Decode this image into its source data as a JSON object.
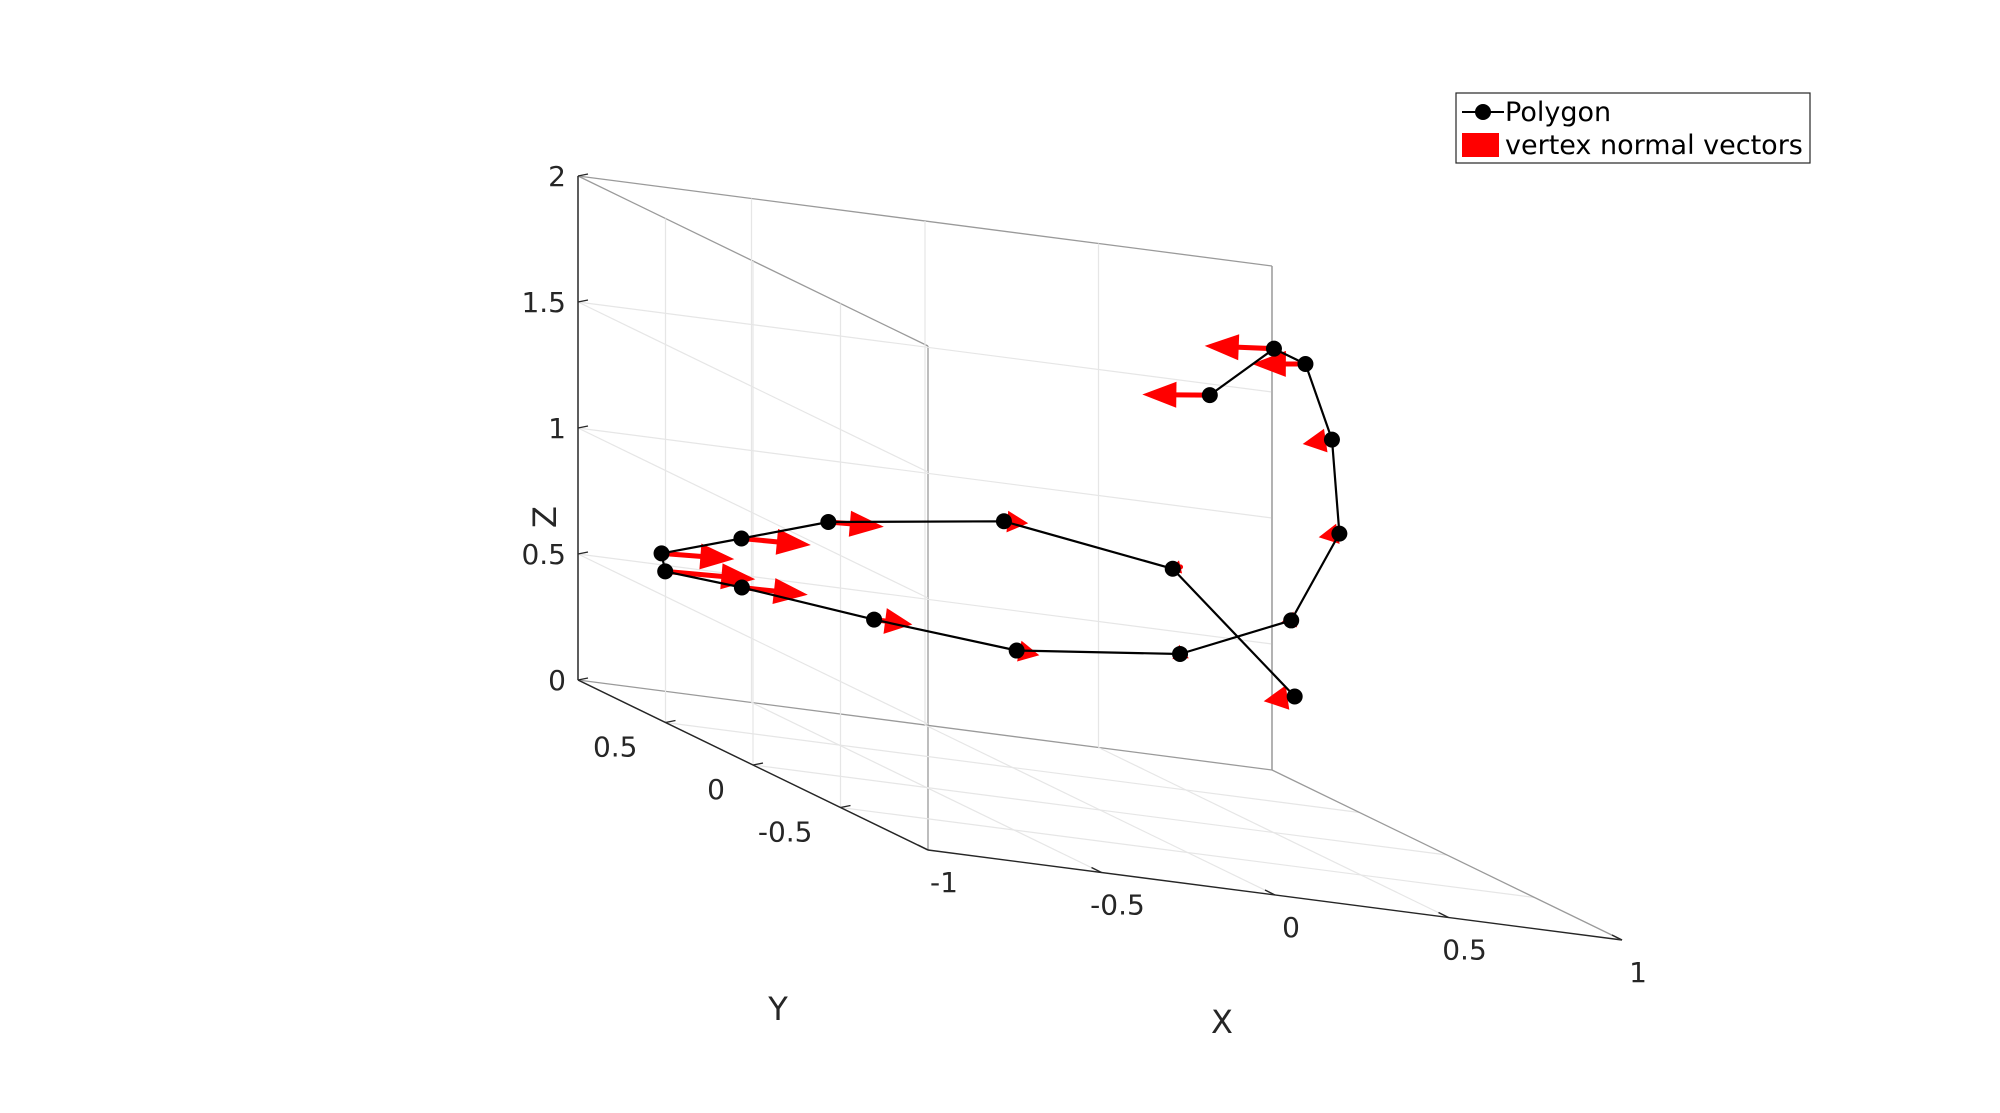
{
  "chart_data": {
    "type": "line3d",
    "xlabel": "X",
    "ylabel": "Y",
    "zlabel": "Z",
    "xlim": [
      -1,
      1
    ],
    "ylim": [
      -1,
      1
    ],
    "zlim": [
      0,
      2
    ],
    "x_ticks": [
      {
        "v": -1,
        "label": "-1"
      },
      {
        "v": -0.5,
        "label": "-0.5"
      },
      {
        "v": 0,
        "label": "0"
      },
      {
        "v": 0.5,
        "label": "0.5"
      },
      {
        "v": 1,
        "label": "1"
      }
    ],
    "y_ticks": [
      {
        "v": -0.5,
        "label": "-0.5"
      },
      {
        "v": 0,
        "label": "0"
      },
      {
        "v": 0.5,
        "label": "0.5"
      }
    ],
    "z_ticks": [
      {
        "v": 0,
        "label": "0"
      },
      {
        "v": 0.5,
        "label": "0.5"
      },
      {
        "v": 1,
        "label": "1"
      },
      {
        "v": 1.5,
        "label": "1.5"
      },
      {
        "v": 2,
        "label": "2"
      }
    ],
    "grid": true,
    "box": true,
    "legend_position": "top-right",
    "series": [
      {
        "name": "Polygon",
        "kind": "line-with-markers",
        "color": "#000000",
        "points": [
          [
            0.73,
            0.82,
            1.5
          ],
          [
            0.93,
            0.85,
            1.71
          ],
          [
            0.93,
            0.67,
            1.71
          ],
          [
            0.85,
            0.36,
            1.5
          ],
          [
            0.71,
            0.04,
            1.21
          ],
          [
            0.43,
            -0.24,
            0.91
          ],
          [
            0.15,
            -0.16,
            0.7
          ],
          [
            -0.22,
            0.04,
            0.58
          ],
          [
            -0.53,
            0.24,
            0.58
          ],
          [
            -0.79,
            0.48,
            0.58
          ],
          [
            -0.9,
            0.7,
            0.55
          ],
          [
            -0.85,
            0.82,
            0.59
          ],
          [
            -0.64,
            0.78,
            0.7
          ],
          [
            -0.45,
            0.66,
            0.84
          ],
          [
            -0.06,
            0.43,
            0.99
          ],
          [
            0.26,
            0.1,
            0.97
          ],
          [
            0.44,
            -0.24,
            0.61
          ]
        ]
      },
      {
        "name": "vertex normal vectors",
        "kind": "quiver",
        "color": "#ff0000",
        "vectors": [
          [
            -0.26,
            -0.13,
            0.0
          ],
          [
            -0.25,
            -0.1,
            0.0
          ],
          [
            -0.21,
            -0.11,
            0.0
          ],
          [
            -0.15,
            -0.13,
            0.0
          ],
          [
            -0.11,
            -0.1,
            0.0
          ],
          [
            -0.06,
            -0.06,
            0.0
          ],
          [
            0.0,
            -0.05,
            0.0
          ],
          [
            0.05,
            -0.03,
            0.0
          ],
          [
            0.11,
            0.0,
            0.0
          ],
          [
            0.2,
            0.02,
            0.0
          ],
          [
            0.29,
            0.06,
            0.0
          ],
          [
            0.24,
            0.06,
            0.0
          ],
          [
            0.22,
            0.04,
            0.0
          ],
          [
            0.18,
            0.04,
            0.0
          ],
          [
            0.08,
            0.02,
            0.0
          ],
          [
            -0.02,
            -0.02,
            0.0
          ],
          [
            -0.16,
            -0.14,
            0.0
          ]
        ]
      }
    ]
  }
}
